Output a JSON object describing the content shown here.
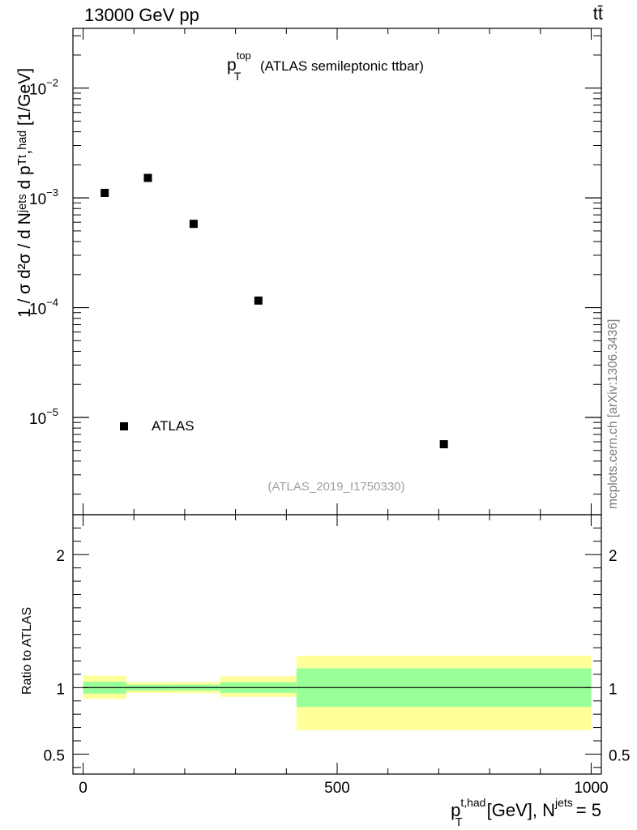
{
  "header": {
    "top_left": "13000 GeV pp",
    "top_right": "tt̄"
  },
  "watermark": "mcplots.cern.ch [arXiv:1306.3436]",
  "chart_data": [
    {
      "type": "scatter",
      "title_main": "p",
      "title_sup": "top",
      "title_sub": "T",
      "title_rest": "(ATLAS semileptonic ttbar)",
      "analysis_id": "(ATLAS_2019_I1750330)",
      "ylabel": "1 / σ d²σ / d Nʲᵉᵗˢ d pᵀᵗ,ʰᵃᵈ [1/GeV]",
      "yscale": "log",
      "ylim": [
        1.3e-06,
        0.035
      ],
      "xlim": [
        -20,
        1020
      ],
      "ytick_values": [
        1e-05,
        0.0001,
        0.001,
        0.01
      ],
      "ytick_labels": [
        {
          "base": "10",
          "exp": "−5"
        },
        {
          "base": "10",
          "exp": "−4"
        },
        {
          "base": "10",
          "exp": "−3"
        },
        {
          "base": "10",
          "exp": "−2"
        }
      ],
      "legend": {
        "placement": "bottom-left",
        "entries": [
          "ATLAS"
        ]
      },
      "series": [
        {
          "name": "ATLAS",
          "x": [
            42.5,
            127.5,
            217.5,
            345,
            710
          ],
          "y": [
            0.00111,
            0.00152,
            0.00058,
            0.000116,
            5.7e-06
          ]
        }
      ]
    },
    {
      "type": "area",
      "ylabel": "Ratio to ATLAS",
      "ylim": [
        0.35,
        2.3
      ],
      "xlim": [
        -20,
        1020
      ],
      "ytick_values": [
        0.5,
        1,
        2
      ],
      "ytick_labels": [
        "0.5",
        "1",
        "2"
      ],
      "xtick_values": [
        0,
        500,
        1000
      ],
      "xtick_labels": [
        "0",
        "500",
        "1000"
      ],
      "xlabel": "p",
      "xlabel_sup": "t,had",
      "xlabel_sub": "T",
      "xlabel_rest": "[GeV], N",
      "xlabel_sup2": "jets",
      "xlabel_tail": "= 5",
      "bins": [
        {
          "lo": 0,
          "hi": 85,
          "inner": [
            0.955,
            1.045
          ],
          "outer": [
            0.915,
            1.09
          ]
        },
        {
          "lo": 85,
          "hi": 170,
          "inner": [
            0.978,
            1.022
          ],
          "outer": [
            0.96,
            1.04
          ]
        },
        {
          "lo": 170,
          "hi": 270,
          "inner": [
            0.978,
            1.022
          ],
          "outer": [
            0.958,
            1.042
          ]
        },
        {
          "lo": 270,
          "hi": 420,
          "inner": [
            0.96,
            1.04
          ],
          "outer": [
            0.93,
            1.085
          ]
        },
        {
          "lo": 420,
          "hi": 1000,
          "inner": [
            0.855,
            1.145
          ],
          "outer": [
            0.68,
            1.24
          ]
        }
      ],
      "colors": {
        "inner": "#99ff99",
        "outer": "#ffff99",
        "reference": "#000000"
      }
    }
  ]
}
